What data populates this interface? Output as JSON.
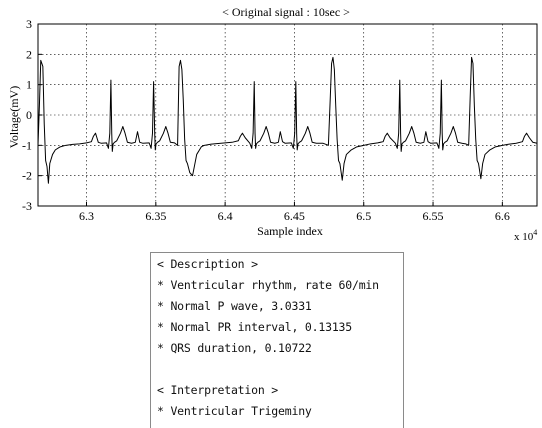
{
  "chart_data": {
    "type": "line",
    "title": "< Original signal : 10sec >",
    "xlabel": "Sample index",
    "ylabel": "Voltage(mV)",
    "x_multiplier": "x 10",
    "x_multiplier_exp": "4",
    "xlim": [
      6.265,
      6.625
    ],
    "ylim": [
      -3,
      3
    ],
    "x_ticks": [
      6.3,
      6.35,
      6.4,
      6.45,
      6.5,
      6.55,
      6.6
    ],
    "x_tick_labels": [
      "6.3",
      "6.35",
      "6.4",
      "6.45",
      "6.5",
      "6.55",
      "6.6"
    ],
    "y_ticks": [
      -3,
      -2,
      -1,
      0,
      1,
      2,
      3
    ],
    "y_tick_labels": [
      "-3",
      "-2",
      "-1",
      "0",
      "1",
      "2",
      "3"
    ],
    "grid": true,
    "series": [
      {
        "color": "#000000",
        "x": [
          6.265,
          6.266,
          6.267,
          6.2685,
          6.2695,
          6.2705,
          6.2715,
          6.2725,
          6.2735,
          6.2755,
          6.2775,
          6.281,
          6.285,
          6.29,
          6.295,
          6.3,
          6.3035,
          6.305,
          6.3065,
          6.3075,
          6.3085,
          6.3105,
          6.3145,
          6.3158,
          6.3168,
          6.3176,
          6.3182,
          6.3186,
          6.3192,
          6.3202,
          6.3218,
          6.3245,
          6.3262,
          6.3278,
          6.3295,
          6.3325,
          6.3352,
          6.3368,
          6.3384,
          6.3405,
          6.3452,
          6.3466,
          6.3476,
          6.3484,
          6.3492,
          6.3496,
          6.3502,
          6.3512,
          6.3528,
          6.3555,
          6.3572,
          6.3588,
          6.3605,
          6.3635,
          6.3657,
          6.3668,
          6.3678,
          6.3688,
          6.3698,
          6.3708,
          6.3718,
          6.3728,
          6.3745,
          6.3765,
          6.3795,
          6.3815,
          6.3828,
          6.385,
          6.39,
          6.395,
          6.4,
          6.405,
          6.4095,
          6.411,
          6.4125,
          6.4145,
          6.4178,
          6.4192,
          6.4202,
          6.421,
          6.4216,
          6.422,
          6.4226,
          6.4236,
          6.4252,
          6.4279,
          6.4296,
          6.4312,
          6.4328,
          6.4358,
          6.4384,
          6.4398,
          6.4414,
          6.4432,
          6.4478,
          6.4492,
          6.4502,
          6.451,
          6.4516,
          6.452,
          6.4526,
          6.4536,
          6.4552,
          6.4579,
          6.4596,
          6.4612,
          6.4628,
          6.4658,
          6.4705,
          6.4745,
          6.4758,
          6.4768,
          6.4778,
          6.4788,
          6.4798,
          6.4808,
          6.4818,
          6.4828,
          6.4845,
          6.4858,
          6.4875,
          6.491,
          6.495,
          6.5,
          6.505,
          6.51,
          6.514,
          6.5155,
          6.517,
          6.519,
          6.5228,
          6.5242,
          6.5252,
          6.526,
          6.5266,
          6.527,
          6.5276,
          6.5286,
          6.5302,
          6.5329,
          6.5346,
          6.5362,
          6.5378,
          6.5408,
          6.5434,
          6.5448,
          6.5464,
          6.5482,
          6.5528,
          6.5542,
          6.5552,
          6.556,
          6.5566,
          6.557,
          6.5576,
          6.5586,
          6.5602,
          6.5629,
          6.5646,
          6.5662,
          6.5678,
          6.5708,
          6.5735,
          6.5757,
          6.5768,
          6.5778,
          6.5788,
          6.5798,
          6.5808,
          6.5818,
          6.5828,
          6.5845,
          6.5858,
          6.5875,
          6.591,
          6.595,
          6.6,
          6.605,
          6.61,
          6.6145,
          6.616,
          6.6175,
          6.6195,
          6.622,
          6.625
        ],
        "y": [
          -1.0,
          0.3,
          1.8,
          1.6,
          -0.3,
          -1.5,
          -1.7,
          -2.25,
          -1.6,
          -1.3,
          -1.15,
          -1.05,
          -1.0,
          -0.97,
          -0.95,
          -0.92,
          -0.88,
          -0.7,
          -0.6,
          -0.75,
          -0.9,
          -0.93,
          -0.92,
          -1.1,
          -0.6,
          1.15,
          -0.6,
          -1.2,
          -0.95,
          -0.9,
          -0.85,
          -0.6,
          -0.38,
          -0.6,
          -0.9,
          -0.93,
          -0.9,
          -0.55,
          -0.9,
          -0.93,
          -0.92,
          -1.1,
          -0.6,
          1.1,
          -0.6,
          -1.15,
          -0.95,
          -0.9,
          -0.85,
          -0.6,
          -0.38,
          -0.6,
          -0.9,
          -0.92,
          -1.0,
          1.6,
          1.8,
          1.5,
          0.5,
          -0.8,
          -1.5,
          -1.6,
          -1.9,
          -2.0,
          -1.3,
          -1.15,
          -1.05,
          -1.0,
          -0.96,
          -0.94,
          -0.92,
          -0.9,
          -0.85,
          -0.7,
          -0.6,
          -0.75,
          -0.93,
          -1.1,
          -0.6,
          1.1,
          -0.6,
          -1.1,
          -0.95,
          -0.9,
          -0.85,
          -0.6,
          -0.38,
          -0.6,
          -0.9,
          -0.93,
          -0.9,
          -0.55,
          -0.88,
          -0.93,
          -0.92,
          -1.1,
          -0.6,
          1.1,
          -0.6,
          -1.15,
          -0.95,
          -0.9,
          -0.85,
          -0.6,
          -0.38,
          -0.6,
          -0.9,
          -0.93,
          -0.93,
          -1.0,
          0.5,
          1.7,
          1.9,
          1.5,
          0.3,
          -0.8,
          -1.5,
          -1.6,
          -2.15,
          -1.6,
          -1.3,
          -1.15,
          -1.05,
          -1.0,
          -0.95,
          -0.92,
          -0.88,
          -0.7,
          -0.6,
          -0.75,
          -0.93,
          -1.1,
          -0.6,
          1.15,
          -0.6,
          -1.2,
          -0.95,
          -0.9,
          -0.85,
          -0.6,
          -0.38,
          -0.6,
          -0.9,
          -0.93,
          -0.9,
          -0.55,
          -0.88,
          -0.93,
          -0.92,
          -1.1,
          -0.6,
          1.15,
          -0.6,
          -1.15,
          -0.95,
          -0.9,
          -0.85,
          -0.6,
          -0.38,
          -0.6,
          -0.9,
          -0.93,
          -0.95,
          -1.0,
          0.6,
          1.9,
          1.7,
          0.3,
          -0.8,
          -1.5,
          -1.6,
          -2.1,
          -1.6,
          -1.3,
          -1.15,
          -1.05,
          -1.0,
          -0.96,
          -0.93,
          -0.88,
          -0.7,
          -0.6,
          -0.75,
          -0.9,
          -0.93
        ]
      }
    ]
  },
  "description": {
    "header": "< Description >",
    "items": [
      "* Ventricular rhythm, rate 60/min",
      "* Normal P wave, 3.0331",
      "* Normal PR interval, 0.13135",
      "* QRS duration, 0.10722"
    ]
  },
  "interpretation": {
    "header": "< Interpretation >",
    "items": [
      "* Ventricular Trigeminy"
    ]
  }
}
